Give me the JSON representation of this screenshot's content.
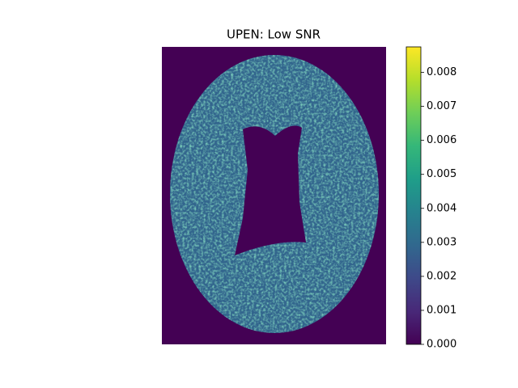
{
  "chart_data": {
    "type": "image",
    "title": "UPEN: Low SNR",
    "colormap": "viridis",
    "colorbar": {
      "lim": [
        0,
        0.00875
      ],
      "ticks": [
        {
          "value": 0,
          "label": "0.000"
        },
        {
          "value": 0.001,
          "label": "0.001"
        },
        {
          "value": 0.002,
          "label": "0.002"
        },
        {
          "value": 0.003,
          "label": "0.003"
        },
        {
          "value": 0.004,
          "label": "0.004"
        },
        {
          "value": 0.005,
          "label": "0.005"
        },
        {
          "value": 0.006,
          "label": "0.006"
        },
        {
          "value": 0.007,
          "label": "0.007"
        },
        {
          "value": 0.008,
          "label": "0.008"
        }
      ]
    }
  }
}
